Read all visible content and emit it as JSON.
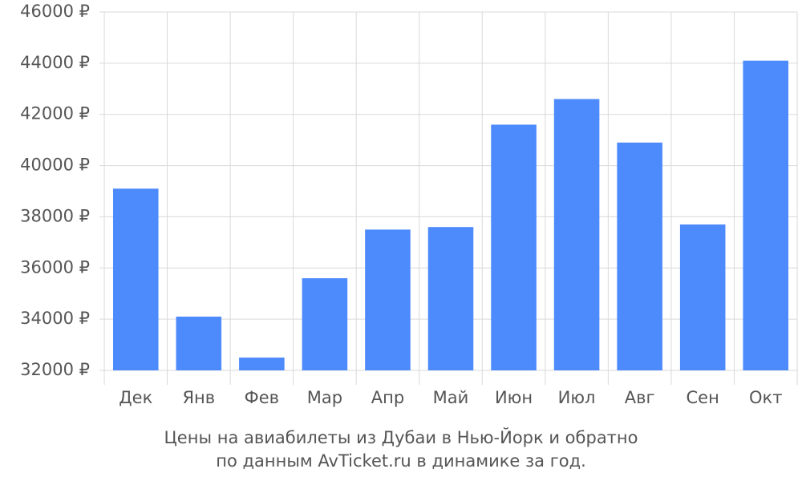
{
  "chart_data": {
    "type": "bar",
    "caption": [
      "Цены на авиабилеты из Дубаи в Нью-Йорк и обратно",
      "по данным AvTicket.ru в динамике за год."
    ],
    "categories": [
      "Дек",
      "Янв",
      "Фев",
      "Мар",
      "Апр",
      "Май",
      "Июн",
      "Июл",
      "Авг",
      "Сен",
      "Окт"
    ],
    "values": [
      39100,
      34100,
      32500,
      35600,
      37500,
      37600,
      41600,
      42600,
      40900,
      37700,
      44100
    ],
    "color": "#4d8afc",
    "ylim": [
      32000,
      46000
    ],
    "yticks": [
      {
        "value": 32000,
        "label": "32000 ₽"
      },
      {
        "value": 34000,
        "label": "34000 ₽"
      },
      {
        "value": 36000,
        "label": "36000 ₽"
      },
      {
        "value": 38000,
        "label": "38000 ₽"
      },
      {
        "value": 40000,
        "label": "40000 ₽"
      },
      {
        "value": 42000,
        "label": "42000 ₽"
      },
      {
        "value": 44000,
        "label": "44000 ₽"
      },
      {
        "value": 46000,
        "label": "46000 ₽"
      }
    ],
    "grid": true
  }
}
